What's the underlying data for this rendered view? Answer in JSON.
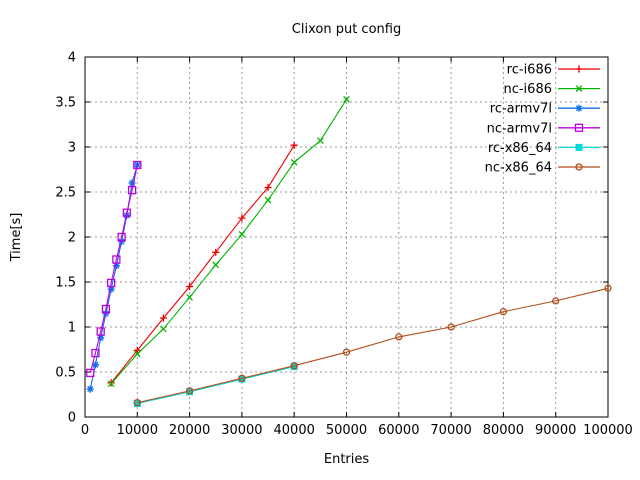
{
  "chart_data": {
    "type": "line",
    "title": "Clixon put config",
    "xlabel": "Entries",
    "ylabel": "Time[s]",
    "xlim": [
      0,
      100000
    ],
    "ylim": [
      0,
      4
    ],
    "x_ticks": [
      0,
      10000,
      20000,
      30000,
      40000,
      50000,
      60000,
      70000,
      80000,
      90000,
      100000
    ],
    "y_ticks": [
      0,
      0.5,
      1,
      1.5,
      2,
      2.5,
      3,
      3.5,
      4
    ],
    "grid": true,
    "grid_style": "dashed-gray",
    "legend_position": "top-right-inside",
    "background_color": "#ffffff",
    "border_color": "#000000",
    "grid_color": "#9a9a9a",
    "series": [
      {
        "name": "rc-i686",
        "color": "#ee0000",
        "marker": "plus",
        "x": [
          5000,
          10000,
          15000,
          20000,
          25000,
          30000,
          35000,
          40000
        ],
        "y": [
          0.38,
          0.74,
          1.1,
          1.45,
          1.83,
          2.21,
          2.55,
          3.02
        ]
      },
      {
        "name": "nc-i686",
        "color": "#00b400",
        "marker": "cross",
        "x": [
          5000,
          10000,
          15000,
          20000,
          25000,
          30000,
          35000,
          40000,
          45000,
          50000
        ],
        "y": [
          0.37,
          0.7,
          0.98,
          1.33,
          1.69,
          2.03,
          2.41,
          2.83,
          3.07,
          3.53
        ]
      },
      {
        "name": "rc-armv7l",
        "color": "#0a6cf0",
        "marker": "asterisk",
        "x": [
          1000,
          2000,
          3000,
          4000,
          5000,
          6000,
          7000,
          8000,
          9000,
          10000
        ],
        "y": [
          0.31,
          0.58,
          0.88,
          1.15,
          1.42,
          1.68,
          1.95,
          2.24,
          2.6,
          2.8
        ]
      },
      {
        "name": "nc-armv7l",
        "color": "#c000e0",
        "marker": "square-open",
        "x": [
          1000,
          2000,
          3000,
          4000,
          5000,
          6000,
          7000,
          8000,
          9000,
          10000
        ],
        "y": [
          0.49,
          0.71,
          0.95,
          1.2,
          1.49,
          1.75,
          2.0,
          2.27,
          2.52,
          2.8
        ]
      },
      {
        "name": "rc-x86_64",
        "color": "#00d9d9",
        "marker": "square-filled",
        "x": [
          10000,
          20000,
          30000,
          40000
        ],
        "y": [
          0.15,
          0.28,
          0.42,
          0.56
        ]
      },
      {
        "name": "nc-x86_64",
        "color": "#b34d1a",
        "marker": "circle-open",
        "x": [
          10000,
          20000,
          30000,
          40000,
          50000,
          60000,
          70000,
          80000,
          90000,
          100000
        ],
        "y": [
          0.16,
          0.29,
          0.43,
          0.57,
          0.72,
          0.89,
          1.0,
          1.17,
          1.29,
          1.43
        ]
      }
    ]
  }
}
